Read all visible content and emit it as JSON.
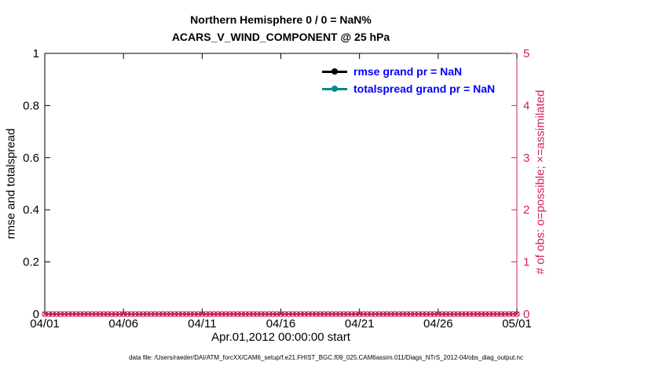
{
  "chart_data": {
    "type": "line",
    "title": "Northern Hemisphere 0 / 0 = NaN%",
    "subtitle": "ACARS_V_WIND_COMPONENT @ 25 hPa",
    "xlabel": "Apr.01,2012 00:00:00 start",
    "x_tick_labels": [
      "04/01",
      "04/06",
      "04/11",
      "04/16",
      "04/21",
      "04/26",
      "05/01"
    ],
    "left_axis": {
      "ylabel": "rmse and totalspread",
      "ylim": [
        0,
        1
      ],
      "ticks": [
        0,
        0.2,
        0.4,
        0.6,
        0.8,
        1
      ],
      "color": "#000000"
    },
    "right_axis": {
      "ylabel": "# of obs: o=possible; ×=assimilated",
      "ylim": [
        0,
        5
      ],
      "ticks": [
        0,
        1,
        2,
        3,
        4,
        5
      ],
      "color": "#d02060"
    },
    "series": [
      {
        "name": "rmse grand pr = NaN",
        "color": "#000000",
        "marker": "filled-circle",
        "values": [],
        "values_note": "all NaN - no line drawn"
      },
      {
        "name": "totalspread grand pr = NaN",
        "color": "#008b8b",
        "marker": "filled-circle",
        "values": [],
        "values_note": "all NaN - no line drawn"
      }
    ],
    "obs_markers": {
      "possible_per_time": 0,
      "assimilated_per_time": 0,
      "plotted_value": 0,
      "n_points": 121,
      "possible_marker": "o",
      "assimilated_marker": "×",
      "color": "#d02060"
    },
    "grid": false,
    "legend_position": "top-center-inside"
  },
  "legend": {
    "text_color": "#0000ff"
  },
  "footer": {
    "text": "data file: /Users/raeder/DAI/ATM_forcXX/CAM6_setup/f.e21.FHIST_BGC.f09_025.CAM6assim.011/Diags_NTrS_2012-04/obs_diag_output.nc"
  }
}
